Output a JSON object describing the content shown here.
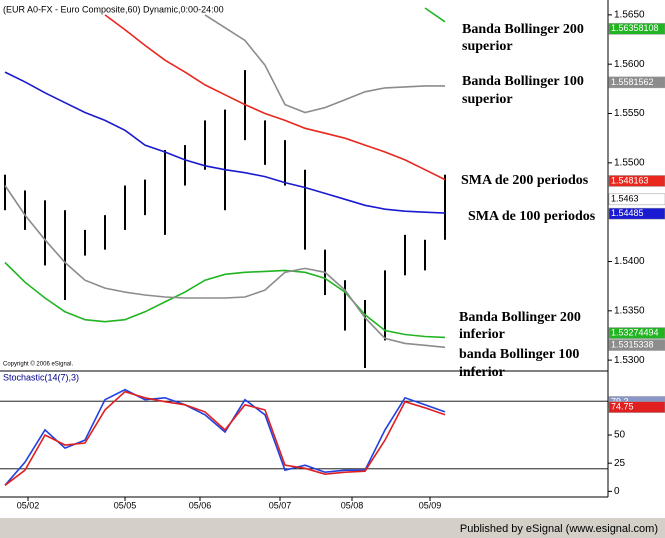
{
  "chart_data": [
    {
      "type": "price",
      "title": "(EUR A0-FX - Euro Composite,60) Dynamic,0:00-24:00",
      "title_color": "#000000",
      "note": "Copyright © 2006 eSignal.",
      "x": [
        0,
        1,
        2,
        3,
        4,
        5,
        6,
        7,
        8,
        9,
        10,
        11,
        12,
        13,
        14,
        15,
        16,
        17,
        18,
        19,
        20,
        21,
        22
      ],
      "xlim": [
        -0.25,
        30.15
      ],
      "ylim": [
        1.529,
        1.566
      ],
      "yticks": [
        {
          "value": 1.565,
          "label": "1.5650"
        },
        {
          "value": 1.56,
          "label": "1.5600"
        },
        {
          "value": 1.555,
          "label": "1.5550"
        },
        {
          "value": 1.55,
          "label": "1.5500"
        },
        {
          "value": 1.54,
          "label": "1.5400"
        },
        {
          "value": 1.535,
          "label": "1.5350"
        },
        {
          "value": 1.53,
          "label": "1.5300"
        }
      ],
      "price_color": "#000000",
      "high": [
        1.5488,
        1.5472,
        1.5462,
        1.5452,
        1.5432,
        1.5447,
        1.5477,
        1.5483,
        1.5513,
        1.5518,
        1.5543,
        1.5554,
        1.5594,
        1.5543,
        1.5523,
        1.5493,
        1.5412,
        1.5381,
        1.5361,
        1.5391,
        1.5427,
        1.5422,
        1.5488
      ],
      "low": [
        1.5452,
        1.5432,
        1.5396,
        1.5361,
        1.5406,
        1.5412,
        1.5432,
        1.5447,
        1.5427,
        1.5477,
        1.5493,
        1.5452,
        1.5523,
        1.5498,
        1.5477,
        1.5412,
        1.5366,
        1.533,
        1.5292,
        1.532,
        1.5386,
        1.5391,
        1.5422
      ],
      "series": [
        {
          "color": "#e8281e",
          "values": [
            null,
            null,
            null,
            null,
            null,
            1.565,
            1.5635,
            1.5619,
            1.5604,
            1.5592,
            1.5579,
            1.5569,
            1.5559,
            1.555,
            1.5543,
            1.5535,
            1.553,
            1.5525,
            1.5518,
            1.5511,
            1.5503,
            1.5493,
            1.5483
          ]
        },
        {
          "color": "#1a1ad0",
          "values": [
            1.5592,
            1.5582,
            1.5571,
            1.5561,
            1.5551,
            1.5543,
            1.5533,
            1.5518,
            1.5511,
            1.5503,
            1.5497,
            1.5493,
            1.549,
            1.5486,
            1.548,
            1.5475,
            1.5469,
            1.5463,
            1.5457,
            1.5453,
            1.5451,
            1.545,
            1.5449
          ]
        },
        {
          "color": "#22b422",
          "values": [
            null,
            null,
            null,
            null,
            null,
            null,
            null,
            null,
            null,
            null,
            null,
            null,
            null,
            null,
            null,
            null,
            null,
            null,
            null,
            null,
            null,
            1.5657,
            1.5643
          ]
        },
        {
          "color": "#8c8c8c",
          "values": [
            null,
            null,
            null,
            null,
            null,
            null,
            null,
            null,
            null,
            null,
            1.565,
            1.5637,
            1.5624,
            1.5599,
            1.5559,
            1.5551,
            1.5556,
            1.5564,
            1.5572,
            1.5576,
            1.5577,
            1.5578,
            1.5578
          ]
        },
        {
          "color": "#22b422",
          "values": [
            1.5399,
            1.5379,
            1.5363,
            1.5349,
            1.5341,
            1.5339,
            1.5341,
            1.5349,
            1.5359,
            1.5369,
            1.5381,
            1.5387,
            1.5389,
            1.539,
            1.5391,
            1.5389,
            1.5383,
            1.5369,
            1.5346,
            1.533,
            1.5326,
            1.5324,
            1.5323
          ]
        },
        {
          "color": "#8c8c8c",
          "values": [
            1.5477,
            1.5447,
            1.5422,
            1.5399,
            1.5381,
            1.5373,
            1.5369,
            1.5366,
            1.5364,
            1.5363,
            1.5363,
            1.5363,
            1.5364,
            1.5371,
            1.5389,
            1.5393,
            1.5389,
            1.5371,
            1.5343,
            1.5322,
            1.5317,
            1.5315,
            1.5313
          ]
        }
      ],
      "tags": [
        {
          "value": 1.56358108,
          "color": "#22b422",
          "fg": "#ffffff"
        },
        {
          "value": 1.5581562,
          "color": "#8c8c8c",
          "fg": "#ffffff"
        },
        {
          "value": 1.548163,
          "color": "#e8281e",
          "fg": "#ffffff"
        },
        {
          "value": 1.5463,
          "color": "#ffffff",
          "fg": "#000000"
        },
        {
          "value": 1.54485,
          "color": "#1a1ad0",
          "fg": "#ffffff"
        },
        {
          "value": 1.53274494,
          "color": "#22b422",
          "fg": "#ffffff"
        },
        {
          "value": 1.5315338,
          "color": "#8c8c8c",
          "fg": "#ffffff"
        }
      ],
      "annotations": [
        {
          "lines": [
            "Banda Bollinger 200",
            "superior"
          ]
        },
        {
          "lines": [
            "Banda Bollinger 100",
            "superior"
          ]
        },
        {
          "lines": [
            "SMA de 200 periodos"
          ]
        },
        {
          "lines": [
            "SMA de 100 periodos"
          ]
        },
        {
          "lines": [
            "Banda Bollinger 200",
            "inferior"
          ]
        },
        {
          "lines": [
            "banda Bollinger 100",
            "inferior"
          ]
        }
      ]
    },
    {
      "type": "line",
      "title": "Stochastic(14(7),3)",
      "title_color": "#00008b",
      "x": [
        0,
        1,
        2,
        3,
        4,
        5,
        6,
        7,
        8,
        9,
        10,
        11,
        12,
        13,
        14,
        15,
        16,
        17,
        18,
        19,
        20,
        21,
        22
      ],
      "xlim": [
        -0.25,
        30.15
      ],
      "ylim": [
        -5,
        105
      ],
      "yticks": [
        50,
        25,
        0
      ],
      "hlines": [
        80,
        20
      ],
      "xticks": [
        {
          "value": 1.15,
          "label": "05/02"
        },
        {
          "value": 6,
          "label": "05/05"
        },
        {
          "value": 9.75,
          "label": "05/06"
        },
        {
          "value": 13.75,
          "label": "05/07"
        },
        {
          "value": 17.35,
          "label": "05/08"
        },
        {
          "value": 21.25,
          "label": "05/09"
        }
      ],
      "series": [
        {
          "color": "#2040e0",
          "values": [
            5.4,
            25.9,
            54.5,
            38.4,
            45.5,
            81.3,
            90.2,
            81.3,
            83.0,
            76.8,
            67.9,
            52.7,
            81.3,
            67.9,
            18.8,
            23.2,
            17.0,
            18.8,
            18.8,
            54.5,
            83.0,
            76.8,
            70.5
          ]
        },
        {
          "color": "#e02020",
          "values": [
            5.4,
            18.8,
            50.0,
            41.1,
            42.9,
            72.3,
            88.4,
            83.0,
            79.5,
            76.8,
            70.5,
            54.5,
            76.8,
            72.3,
            23.2,
            20.5,
            15.2,
            17.0,
            17.9,
            45.5,
            79.5,
            74.1,
            67.9
          ]
        }
      ],
      "tags": [
        {
          "value": 79.3,
          "color": "#8a96c8",
          "fg": "#ffffff"
        },
        {
          "value": 74.75,
          "color": "#e02020",
          "fg": "#ffffff"
        }
      ]
    }
  ],
  "footer": "Published by eSignal (www.esignal.com)"
}
